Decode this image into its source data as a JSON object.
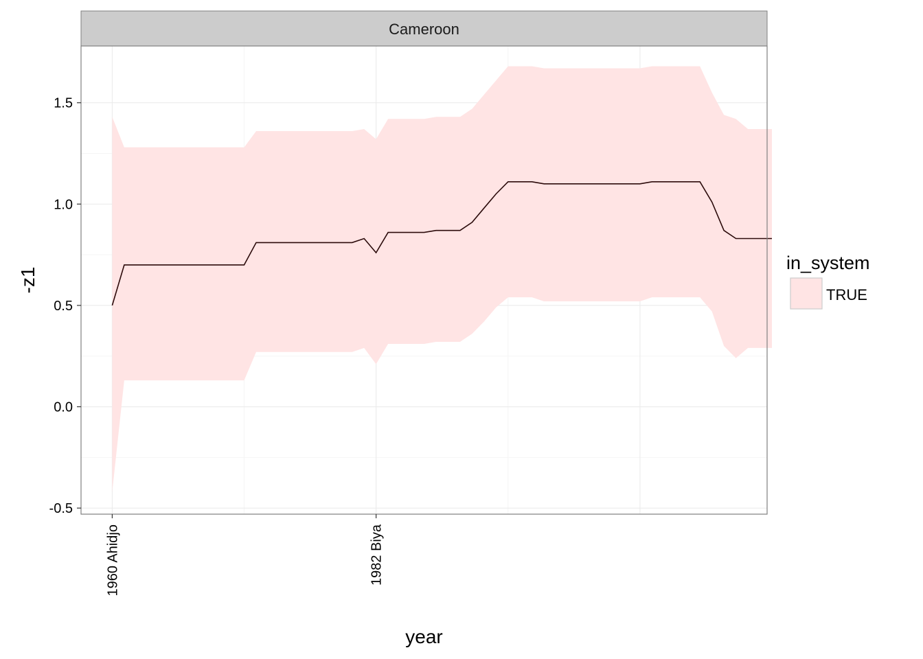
{
  "chart_data": {
    "type": "area",
    "panel_title": "Cameroon",
    "xlabel": "year",
    "ylabel": "-z1",
    "x_range": [
      1957.4,
      2014.6
    ],
    "ylim": [
      -0.53,
      1.78
    ],
    "y_ticks": [
      -0.5,
      0.0,
      0.5,
      1.0,
      1.5
    ],
    "y_tick_labels": [
      "-0.5",
      "0.0",
      "0.5",
      "1.0",
      "1.5"
    ],
    "x_ticks": [
      {
        "x": 1960,
        "label": "1960 Ahidjo"
      },
      {
        "x": 1982,
        "label": "1982 Biya"
      }
    ],
    "x_grid_major": [
      1960,
      1982,
      2004
    ],
    "x_grid_minor": [
      1971,
      1993,
      2015
    ],
    "grid": true,
    "legend": {
      "title": "in_system",
      "position": "right",
      "entries": [
        "TRUE"
      ]
    },
    "colors": {
      "ribbon": "#ffe4e4",
      "line": "#2b0a0a",
      "strip_bg": "#cccccc",
      "grid": "#ebebeb",
      "border": "#7f7f7f"
    },
    "series": [
      {
        "x": [
          1960,
          1961,
          1962,
          1963,
          1964,
          1965,
          1966,
          1967,
          1968,
          1969,
          1970,
          1971,
          1972,
          1973,
          1974,
          1975,
          1976,
          1977,
          1978,
          1979,
          1980,
          1981,
          1982,
          1983,
          1984,
          1985,
          1986,
          1987,
          1988,
          1989,
          1990,
          1991,
          1992,
          1993,
          1994,
          1995,
          1996,
          1997,
          1998,
          1999,
          2000,
          2001,
          2002,
          2003,
          2004,
          2005,
          2006,
          2007,
          2008,
          2009,
          2010,
          2011,
          2012,
          2013,
          2014,
          2015
        ],
        "y": [
          0.5,
          0.7,
          0.7,
          0.7,
          0.7,
          0.7,
          0.7,
          0.7,
          0.7,
          0.7,
          0.7,
          0.7,
          0.81,
          0.81,
          0.81,
          0.81,
          0.81,
          0.81,
          0.81,
          0.81,
          0.81,
          0.83,
          0.76,
          0.86,
          0.86,
          0.86,
          0.86,
          0.87,
          0.87,
          0.87,
          0.91,
          0.98,
          1.05,
          1.11,
          1.11,
          1.11,
          1.1,
          1.1,
          1.1,
          1.1,
          1.1,
          1.1,
          1.1,
          1.1,
          1.1,
          1.11,
          1.11,
          1.11,
          1.11,
          1.11,
          1.01,
          0.87,
          0.83,
          0.83,
          0.83,
          0.83
        ],
        "lower": [
          -0.42,
          0.13,
          0.13,
          0.13,
          0.13,
          0.13,
          0.13,
          0.13,
          0.13,
          0.13,
          0.13,
          0.13,
          0.27,
          0.27,
          0.27,
          0.27,
          0.27,
          0.27,
          0.27,
          0.27,
          0.27,
          0.29,
          0.21,
          0.31,
          0.31,
          0.31,
          0.31,
          0.32,
          0.32,
          0.32,
          0.36,
          0.42,
          0.49,
          0.54,
          0.54,
          0.54,
          0.52,
          0.52,
          0.52,
          0.52,
          0.52,
          0.52,
          0.52,
          0.52,
          0.52,
          0.54,
          0.54,
          0.54,
          0.54,
          0.54,
          0.47,
          0.3,
          0.24,
          0.29,
          0.29,
          0.29
        ],
        "upper": [
          1.43,
          1.28,
          1.28,
          1.28,
          1.28,
          1.28,
          1.28,
          1.28,
          1.28,
          1.28,
          1.28,
          1.28,
          1.36,
          1.36,
          1.36,
          1.36,
          1.36,
          1.36,
          1.36,
          1.36,
          1.36,
          1.37,
          1.32,
          1.42,
          1.42,
          1.42,
          1.42,
          1.43,
          1.43,
          1.43,
          1.47,
          1.54,
          1.61,
          1.68,
          1.68,
          1.68,
          1.67,
          1.67,
          1.67,
          1.67,
          1.67,
          1.67,
          1.67,
          1.67,
          1.67,
          1.68,
          1.68,
          1.68,
          1.68,
          1.68,
          1.55,
          1.44,
          1.42,
          1.37,
          1.37,
          1.37
        ]
      }
    ]
  }
}
